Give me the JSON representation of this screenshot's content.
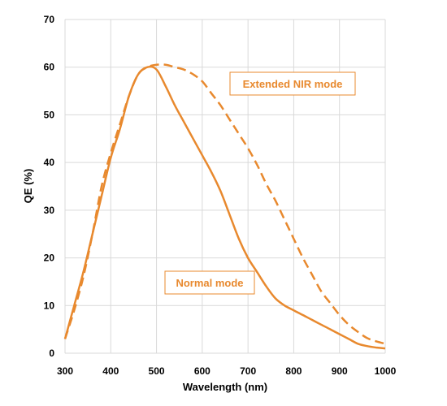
{
  "chart_data": {
    "type": "line",
    "xlabel": "Wavelength (nm)",
    "ylabel": "QE (%)",
    "xlim": [
      300,
      1000
    ],
    "ylim": [
      0,
      70
    ],
    "x_ticks": [
      "300",
      "400",
      "500",
      "600",
      "700",
      "800",
      "900",
      "1000"
    ],
    "y_ticks": [
      "0",
      "10",
      "20",
      "30",
      "40",
      "50",
      "60",
      "70"
    ],
    "grid": true,
    "series": [
      {
        "name": "Normal mode",
        "style": "solid",
        "color": "#E8892E",
        "x": [
          300,
          320,
          340,
          360,
          380,
          400,
          420,
          440,
          460,
          480,
          500,
          520,
          540,
          560,
          580,
          600,
          620,
          640,
          660,
          680,
          700,
          720,
          740,
          760,
          780,
          800,
          820,
          840,
          860,
          880,
          900,
          920,
          940,
          960,
          980,
          1000
        ],
        "y": [
          3,
          10,
          17,
          25,
          33,
          41,
          47,
          54,
          58.5,
          60,
          59.5,
          56,
          52,
          48.5,
          45,
          41.5,
          38,
          34,
          29,
          24,
          20,
          17,
          14,
          11.5,
          10,
          9,
          8,
          7,
          6,
          5,
          4,
          3,
          2,
          1.5,
          1.2,
          1
        ]
      },
      {
        "name": "Extended NIR mode",
        "style": "dashed",
        "color": "#E8892E",
        "x": [
          300,
          320,
          340,
          360,
          380,
          400,
          420,
          440,
          460,
          480,
          500,
          520,
          540,
          560,
          580,
          600,
          620,
          640,
          660,
          680,
          700,
          720,
          740,
          760,
          780,
          800,
          820,
          840,
          860,
          880,
          900,
          920,
          940,
          960,
          980,
          1000
        ],
        "y": [
          3,
          9,
          16,
          25,
          35,
          42,
          48,
          54,
          58.5,
          60,
          60.5,
          60.5,
          60,
          59.5,
          58.5,
          57,
          54.5,
          52,
          49,
          46,
          43,
          39.5,
          35.5,
          32,
          28,
          24,
          20,
          16.5,
          13,
          10.5,
          8,
          6,
          4.5,
          3.2,
          2.5,
          2
        ]
      }
    ],
    "annotations": [
      "Extended NIR mode",
      "Normal mode"
    ]
  }
}
